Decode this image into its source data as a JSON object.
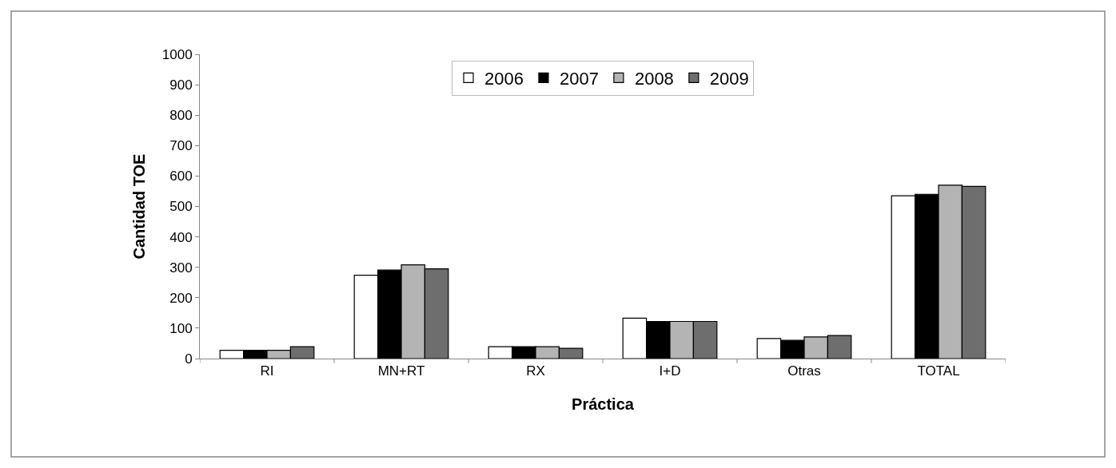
{
  "chart_data": {
    "type": "bar",
    "xlabel": "Práctica",
    "ylabel": "Cantidad TOE",
    "categories": [
      "RI",
      "MN+RT",
      "RX",
      "I+D",
      "Otras",
      "TOTAL"
    ],
    "series": [
      {
        "name": "2006",
        "color": "#ffffff",
        "values": [
          27,
          274,
          39,
          133,
          66,
          535
        ]
      },
      {
        "name": "2007",
        "color": "#000000",
        "values": [
          27,
          291,
          39,
          122,
          60,
          540
        ]
      },
      {
        "name": "2008",
        "color": "#b4b4b4",
        "values": [
          27,
          308,
          39,
          122,
          71,
          570
        ]
      },
      {
        "name": "2009",
        "color": "#6e6e6e",
        "values": [
          39,
          295,
          34,
          122,
          76,
          566
        ]
      }
    ],
    "ylim": [
      0,
      1000
    ],
    "yticks": [
      0,
      100,
      200,
      300,
      400,
      500,
      600,
      700,
      800,
      900,
      1000
    ],
    "grid": false,
    "legend": "top"
  }
}
